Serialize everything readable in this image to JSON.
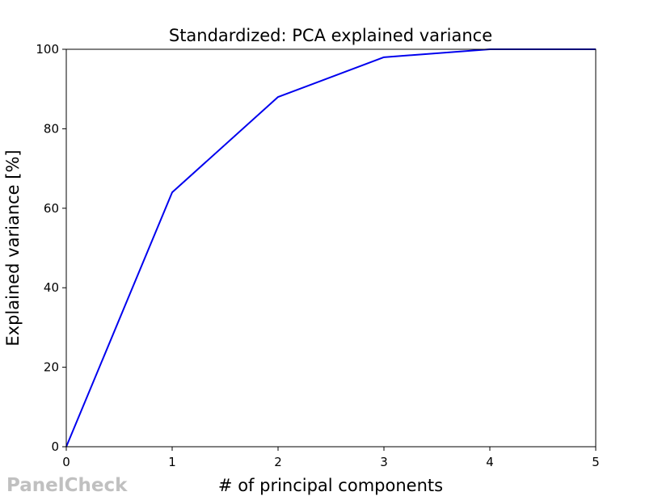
{
  "watermark": "PanelCheck",
  "chart_data": {
    "type": "line",
    "title": "Standardized: PCA explained variance",
    "xlabel": "# of principal components",
    "ylabel": "Explained variance [%]",
    "xlim": [
      0,
      5
    ],
    "ylim": [
      0,
      100
    ],
    "xticks": [
      0,
      1,
      2,
      3,
      4,
      5
    ],
    "yticks": [
      0,
      20,
      40,
      60,
      80,
      100
    ],
    "grid": false,
    "legend": "none",
    "series": [
      {
        "color": "#0000ee",
        "x": [
          0,
          1,
          2,
          3,
          4,
          5
        ],
        "y": [
          0,
          64,
          88,
          98,
          100,
          100
        ]
      }
    ]
  }
}
